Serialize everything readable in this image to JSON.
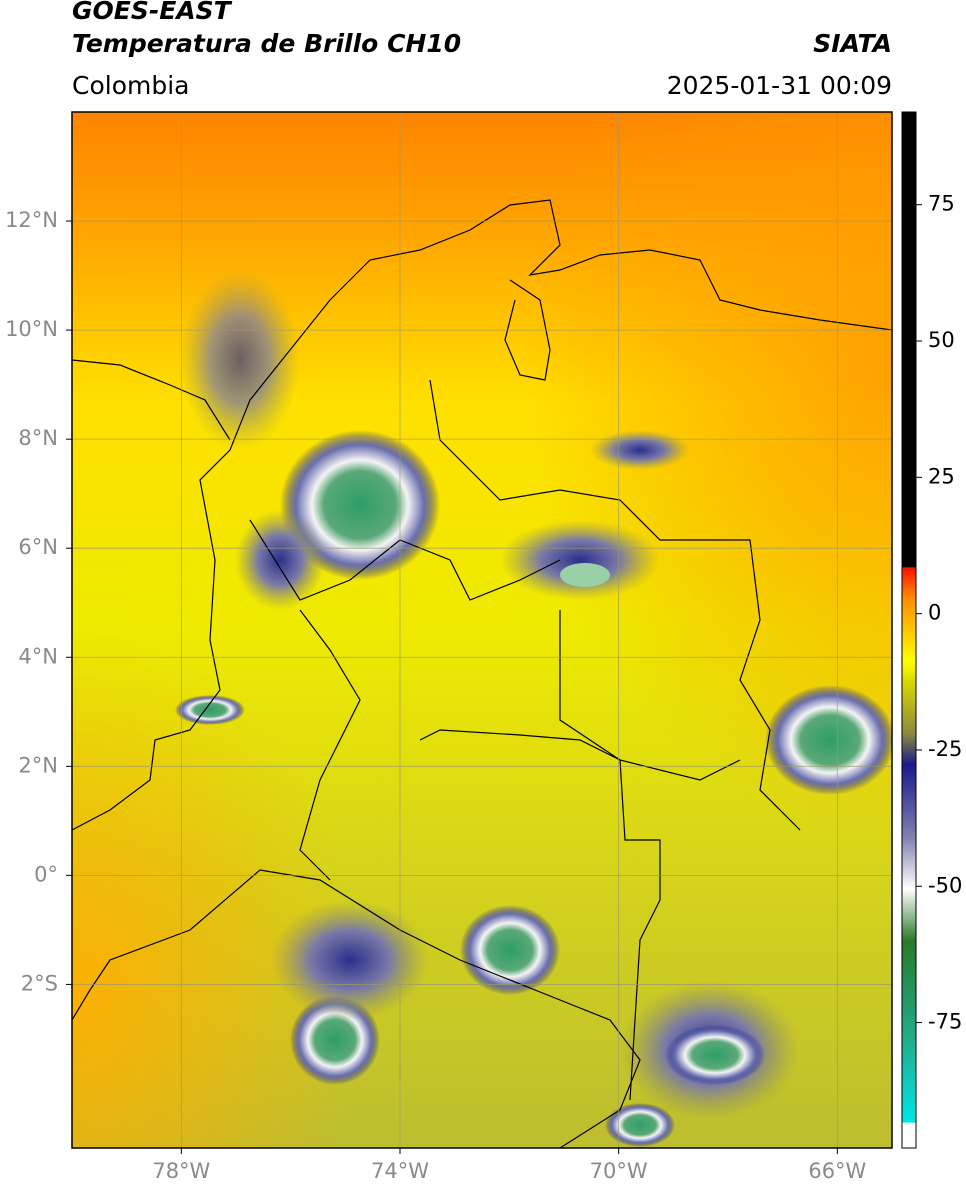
{
  "header": {
    "title": "GOES-EAST",
    "subtitle": "Temperatura de Brillo CH10",
    "source": "SIATA",
    "region": "Colombia",
    "datetime": "2025-01-31 00:09"
  },
  "map": {
    "xlim": [
      -80,
      -65
    ],
    "ylim": [
      -5,
      14
    ],
    "grid": true,
    "xticks": [
      {
        "value": -78,
        "label": "78°W"
      },
      {
        "value": -74,
        "label": "74°W"
      },
      {
        "value": -70,
        "label": "70°W"
      },
      {
        "value": -66,
        "label": "66°W"
      }
    ],
    "yticks": [
      {
        "value": 12,
        "label": "12°N"
      },
      {
        "value": 10,
        "label": "10°N"
      },
      {
        "value": 8,
        "label": "8°N"
      },
      {
        "value": 6,
        "label": "6°N"
      },
      {
        "value": 4,
        "label": "4°N"
      },
      {
        "value": 2,
        "label": "2°N"
      },
      {
        "value": 0,
        "label": "0°"
      },
      {
        "value": -2,
        "label": "2°S"
      }
    ]
  },
  "colorbar": {
    "lim": [
      -98,
      92
    ],
    "ticks": [
      75,
      50,
      25,
      0,
      -25,
      -50,
      -75
    ]
  }
}
